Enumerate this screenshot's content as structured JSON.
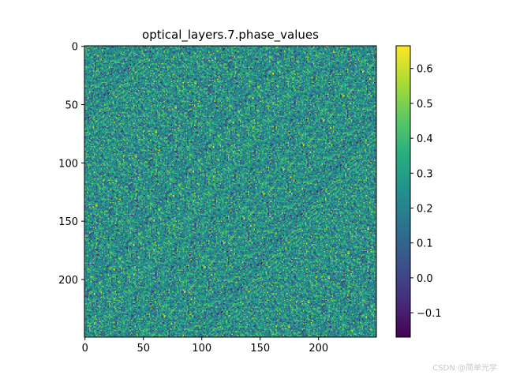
{
  "chart_data": {
    "type": "heatmap",
    "title": "optical_layers.7.phase_values",
    "xlabel": "",
    "ylabel": "",
    "grid_size": [
      250,
      250
    ],
    "xlim": [
      -0.5,
      249.5
    ],
    "ylim": [
      249.5,
      -0.5
    ],
    "x_ticks": [
      0,
      50,
      100,
      150,
      200
    ],
    "y_ticks": [
      0,
      50,
      100,
      150,
      200
    ],
    "colormap": "viridis",
    "value_range": [
      -0.17,
      0.665
    ],
    "value_distribution": {
      "mean": 0.25,
      "std": 0.13
    },
    "colorbar_ticks": [
      -0.1,
      0.0,
      0.1,
      0.2,
      0.3,
      0.4,
      0.5,
      0.6
    ],
    "colorbar_tick_labels": [
      "−0.1",
      "0.0",
      "0.1",
      "0.2",
      "0.3",
      "0.4",
      "0.5",
      "0.6"
    ],
    "grid": false
  },
  "watermark": "CSDN @简单光学"
}
